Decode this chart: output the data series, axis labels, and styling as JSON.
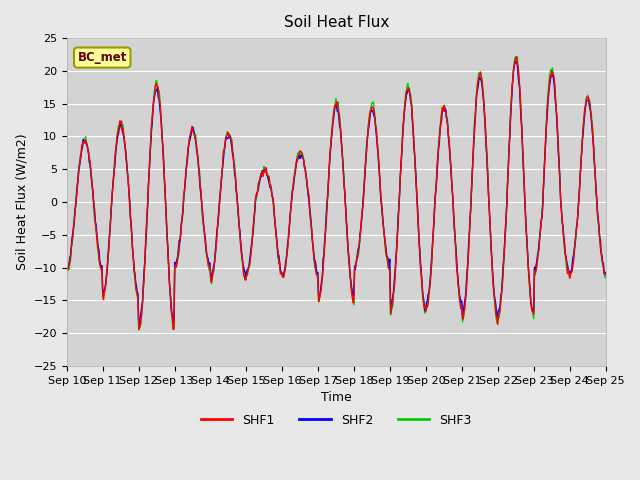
{
  "title": "Soil Heat Flux",
  "ylabel": "Soil Heat Flux (W/m2)",
  "xlabel": "Time",
  "ylim": [
    -25,
    25
  ],
  "legend_label": "BC_met",
  "line_colors": [
    "#FF0000",
    "#0000FF",
    "#00CC00"
  ],
  "line_labels": [
    "SHF1",
    "SHF2",
    "SHF3"
  ],
  "bg_color": "#E8E8E8",
  "plot_bg_color": "#D3D3D3",
  "grid_color": "#FFFFFF",
  "annotation_bg": "#FFFF99",
  "annotation_border": "#999900",
  "annotation_text_color": "#660000",
  "xtick_labels": [
    "Sep 10",
    "Sep 11",
    "Sep 12",
    "Sep 13",
    "Sep 14",
    "Sep 15",
    "Sep 16",
    "Sep 17",
    "Sep 18",
    "Sep 19",
    "Sep 20",
    "Sep 21",
    "Sep 22",
    "Sep 23",
    "Sep 24",
    "Sep 25"
  ],
  "num_days": 15,
  "points_per_day": 48,
  "daily_amps_pos": [
    9.5,
    12.0,
    17.8,
    11.0,
    10.5,
    5.0,
    7.5,
    15.0,
    14.5,
    17.5,
    14.5,
    19.5,
    22.0,
    20.0,
    16.0
  ],
  "daily_amps_neg": [
    10.5,
    14.5,
    19.5,
    10.0,
    12.0,
    11.0,
    11.5,
    15.0,
    10.0,
    17.0,
    16.0,
    18.0,
    17.5,
    11.0,
    11.0
  ]
}
